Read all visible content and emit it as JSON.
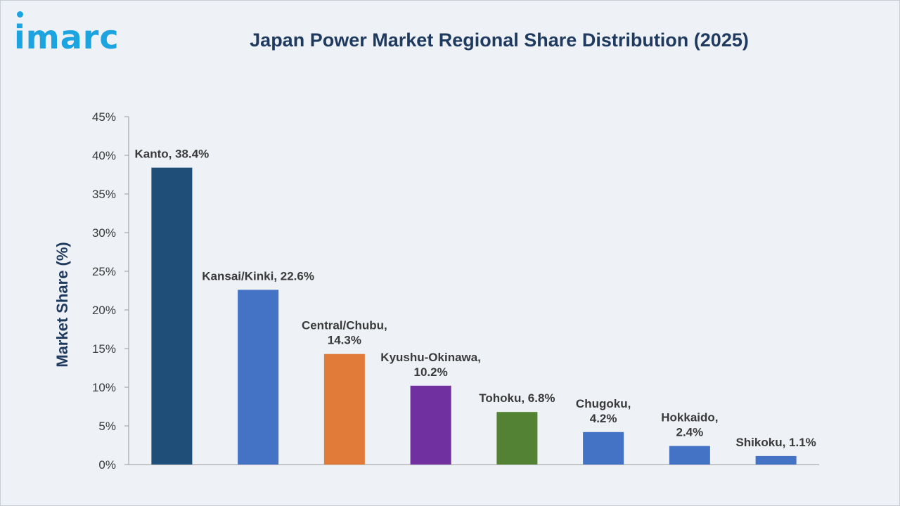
{
  "brand": {
    "logo_text": "imarc",
    "logo_color": "#1ca4e0"
  },
  "header": {
    "title": "Japan Power Market Regional Share Distribution (2025)"
  },
  "colors": {
    "axis_text": "#3a3a3a",
    "title": "#1f3a5f",
    "grid": "#9a9a9a"
  },
  "chart_data": {
    "type": "bar",
    "title": "Japan Power Market Regional Share Distribution (2025)",
    "xlabel": "",
    "ylabel": "Market Share (%)",
    "ylim": [
      0,
      45
    ],
    "y_ticks": [
      0,
      5,
      10,
      15,
      20,
      25,
      30,
      35,
      40,
      45
    ],
    "y_tick_labels": [
      "0%",
      "5%",
      "10%",
      "15%",
      "20%",
      "25%",
      "30%",
      "35%",
      "40%",
      "45%"
    ],
    "grid": false,
    "legend": "none",
    "categories": [
      "Kanto",
      "Kansai/Kinki",
      "Central/Chubu",
      "Kyushu-Okinawa",
      "Tohoku",
      "Chugoku",
      "Hokkaido",
      "Shikoku"
    ],
    "values": [
      38.4,
      22.6,
      14.3,
      10.2,
      6.8,
      4.2,
      2.4,
      1.1
    ],
    "bar_colors": [
      "#1f4e79",
      "#4472c4",
      "#e07b39",
      "#7030a0",
      "#548235",
      "#4472c4",
      "#4472c4",
      "#4472c4"
    ],
    "data_labels": [
      [
        "Kanto, 38.4%"
      ],
      [
        "Kansai/Kinki, 22.6%"
      ],
      [
        "Central/Chubu,",
        "14.3%"
      ],
      [
        "Kyushu-Okinawa,",
        "10.2%"
      ],
      [
        "Tohoku, 6.8%"
      ],
      [
        "Chugoku,",
        "4.2%"
      ],
      [
        "Hokkaido,",
        "2.4%"
      ],
      [
        "Shikoku, 1.1%"
      ]
    ]
  }
}
